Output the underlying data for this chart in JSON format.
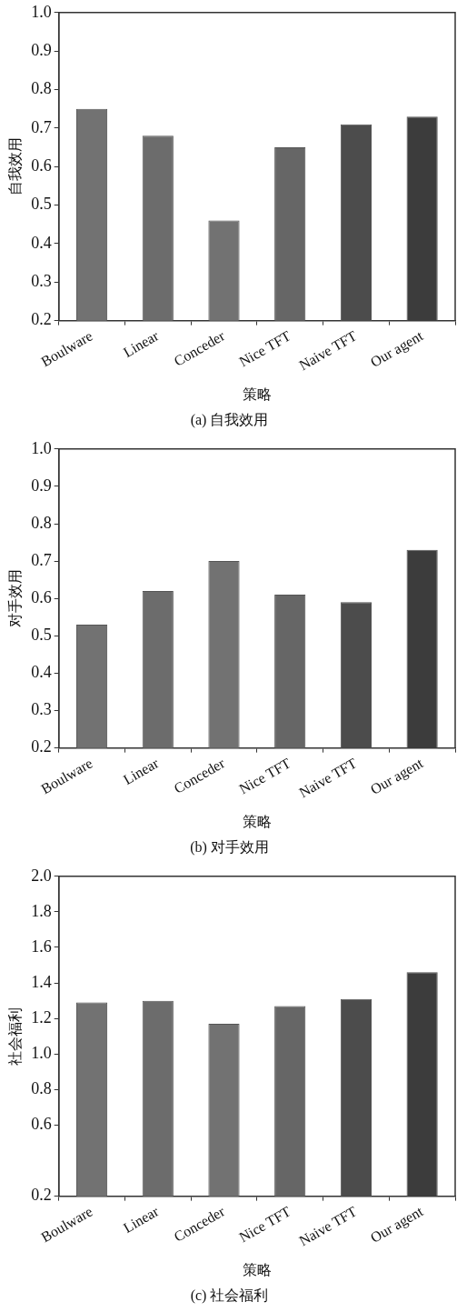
{
  "chart_data": [
    {
      "type": "bar",
      "title": "(a) 自我效用",
      "xlabel": "策略",
      "ylabel": "自我效用",
      "categories": [
        "Boulware",
        "Linear",
        "Conceder",
        "Nice TFT",
        "Naive TFT",
        "Our agent"
      ],
      "values": [
        0.75,
        0.68,
        0.46,
        0.65,
        0.71,
        0.73
      ],
      "colors": [
        "#727272",
        "#6c6c6c",
        "#727272",
        "#666666",
        "#4c4c4c",
        "#3c3c3c"
      ],
      "ylim": [
        0.2,
        1.0
      ],
      "yticks": [
        0.2,
        0.3,
        0.4,
        0.5,
        0.6,
        0.7,
        0.8,
        0.9,
        {
          "value": 1.0,
          "label": "1.0"
        }
      ]
    },
    {
      "type": "bar",
      "title": "(b) 对手效用",
      "xlabel": "策略",
      "ylabel": "对手效用",
      "categories": [
        "Boulware",
        "Linear",
        "Conceder",
        "Nice TFT",
        "Naive TFT",
        "Our agent"
      ],
      "values": [
        0.53,
        0.62,
        0.7,
        0.61,
        0.59,
        0.73
      ],
      "colors": [
        "#727272",
        "#6c6c6c",
        "#727272",
        "#666666",
        "#4c4c4c",
        "#3c3c3c"
      ],
      "ylim": [
        0.2,
        1.0
      ],
      "yticks": [
        0.2,
        0.3,
        0.4,
        0.5,
        0.6,
        0.7,
        0.8,
        0.9,
        {
          "value": 1.0,
          "label": "1.0"
        }
      ]
    },
    {
      "type": "bar",
      "title": "(c) 社会福利",
      "xlabel": "策略",
      "ylabel": "社会福利",
      "categories": [
        "Boulware",
        "Linear",
        "Conceder",
        "Nice TFT",
        "Naive TFT",
        "Our agent"
      ],
      "values": [
        1.29,
        1.3,
        1.17,
        1.27,
        1.31,
        1.46
      ],
      "colors": [
        "#727272",
        "#6c6c6c",
        "#727272",
        "#666666",
        "#4c4c4c",
        "#3c3c3c"
      ],
      "ylim": [
        0.2,
        2.0
      ],
      "yticks": [
        {
          "value": 0.2,
          "label": "0.2"
        },
        {
          "value": 0.6,
          "label": "0.6"
        },
        {
          "value": 0.8,
          "label": "0.8"
        },
        {
          "value": 1.0,
          "label": "1.0"
        },
        {
          "value": 1.2,
          "label": "1.2"
        },
        {
          "value": 1.4,
          "label": "1.4"
        },
        {
          "value": 1.6,
          "label": "1.6"
        },
        {
          "value": 1.8,
          "label": "1.8"
        },
        {
          "value": 2.0,
          "label": "2.0"
        }
      ]
    }
  ]
}
